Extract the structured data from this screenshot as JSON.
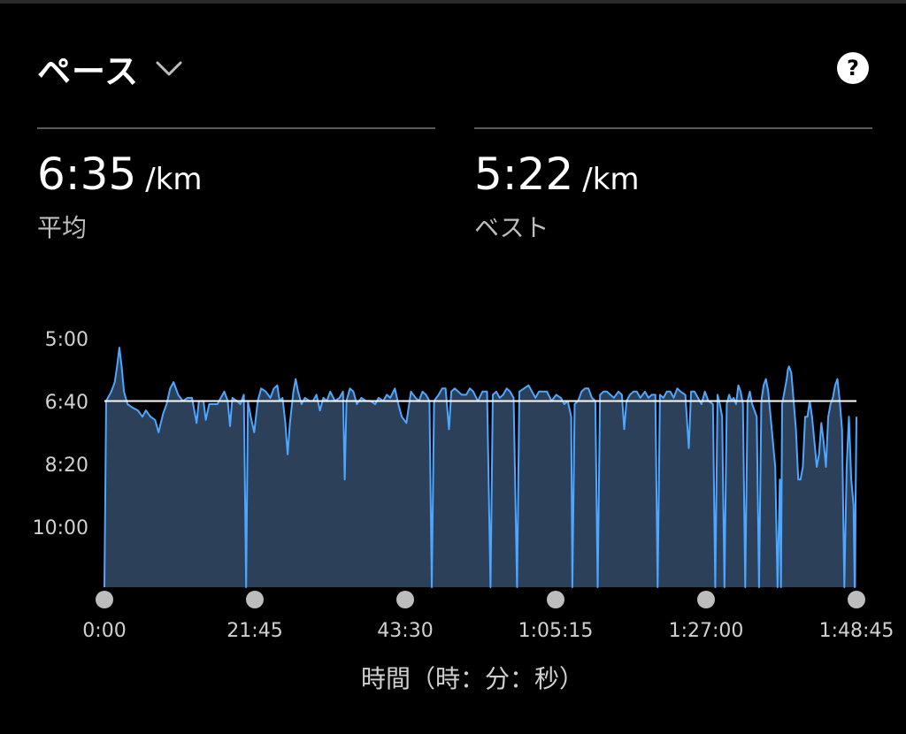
{
  "header": {
    "title": "ペース",
    "dropdown_icon": "chevron-down-icon",
    "help_icon": "help-icon",
    "help_glyph": "?"
  },
  "stats": {
    "average": {
      "value": "6:35",
      "unit": "/km",
      "label": "平均"
    },
    "best": {
      "value": "5:22",
      "unit": "/km",
      "label": "ベスト"
    }
  },
  "colors": {
    "background": "#000000",
    "line": "#4da6ff",
    "fill": "#2c4159",
    "avg_line": "#ffffff",
    "scrubber": "#bdbdbd"
  },
  "chart_data": {
    "type": "area",
    "title": "ペース",
    "xlabel": "時間（時：分：秒）",
    "ylabel": "",
    "y_inverted": true,
    "x_unit": "seconds",
    "y_unit": "seconds per km",
    "xlim": [
      0,
      6525
    ],
    "ylim": [
      300,
      780
    ],
    "y_ticks": [
      "5:00",
      "6:40",
      "8:20",
      "10:00"
    ],
    "x_ticks": [
      "0:00",
      "21:45",
      "43:30",
      "1:05:15",
      "1:27:00",
      "1:48:45"
    ],
    "average_pace": 395,
    "series": [
      {
        "points": [
          [
            0,
            780
          ],
          [
            15,
            395
          ],
          [
            60,
            380
          ],
          [
            90,
            365
          ],
          [
            110,
            340
          ],
          [
            130,
            310
          ],
          [
            150,
            340
          ],
          [
            170,
            380
          ],
          [
            200,
            400
          ],
          [
            240,
            405
          ],
          [
            290,
            410
          ],
          [
            330,
            420
          ],
          [
            360,
            410
          ],
          [
            400,
            420
          ],
          [
            440,
            425
          ],
          [
            470,
            445
          ],
          [
            510,
            415
          ],
          [
            540,
            400
          ],
          [
            570,
            375
          ],
          [
            600,
            365
          ],
          [
            640,
            385
          ],
          [
            680,
            395
          ],
          [
            720,
            390
          ],
          [
            760,
            390
          ],
          [
            780,
            410
          ],
          [
            800,
            430
          ],
          [
            820,
            395
          ],
          [
            860,
            395
          ],
          [
            880,
            425
          ],
          [
            910,
            400
          ],
          [
            950,
            400
          ],
          [
            980,
            400
          ],
          [
            1010,
            390
          ],
          [
            1040,
            380
          ],
          [
            1070,
            395
          ],
          [
            1090,
            435
          ],
          [
            1110,
            390
          ],
          [
            1150,
            395
          ],
          [
            1180,
            400
          ],
          [
            1210,
            385
          ],
          [
            1230,
            790
          ],
          [
            1245,
            395
          ],
          [
            1270,
            420
          ],
          [
            1300,
            445
          ],
          [
            1330,
            395
          ],
          [
            1360,
            375
          ],
          [
            1400,
            380
          ],
          [
            1440,
            390
          ],
          [
            1470,
            375
          ],
          [
            1500,
            370
          ],
          [
            1520,
            395
          ],
          [
            1545,
            390
          ],
          [
            1570,
            430
          ],
          [
            1590,
            480
          ],
          [
            1610,
            430
          ],
          [
            1640,
            380
          ],
          [
            1660,
            360
          ],
          [
            1680,
            380
          ],
          [
            1710,
            400
          ],
          [
            1740,
            390
          ],
          [
            1780,
            395
          ],
          [
            1810,
            395
          ],
          [
            1840,
            385
          ],
          [
            1870,
            410
          ],
          [
            1900,
            390
          ],
          [
            1930,
            395
          ],
          [
            1960,
            380
          ],
          [
            2000,
            395
          ],
          [
            2040,
            390
          ],
          [
            2070,
            380
          ],
          [
            2085,
            520
          ],
          [
            2100,
            395
          ],
          [
            2130,
            375
          ],
          [
            2160,
            380
          ],
          [
            2190,
            400
          ],
          [
            2230,
            390
          ],
          [
            2270,
            395
          ],
          [
            2310,
            395
          ],
          [
            2350,
            400
          ],
          [
            2380,
            390
          ],
          [
            2420,
            395
          ],
          [
            2450,
            385
          ],
          [
            2480,
            390
          ],
          [
            2520,
            375
          ],
          [
            2550,
            400
          ],
          [
            2580,
            420
          ],
          [
            2620,
            430
          ],
          [
            2660,
            380
          ],
          [
            2700,
            390
          ],
          [
            2730,
            395
          ],
          [
            2760,
            380
          ],
          [
            2790,
            385
          ],
          [
            2820,
            395
          ],
          [
            2840,
            780
          ],
          [
            2860,
            395
          ],
          [
            2900,
            385
          ],
          [
            2930,
            375
          ],
          [
            2960,
            375
          ],
          [
            2990,
            440
          ],
          [
            3010,
            380
          ],
          [
            3040,
            375
          ],
          [
            3070,
            380
          ],
          [
            3100,
            385
          ],
          [
            3140,
            385
          ],
          [
            3170,
            375
          ],
          [
            3200,
            380
          ],
          [
            3240,
            395
          ],
          [
            3280,
            380
          ],
          [
            3320,
            380
          ],
          [
            3350,
            790
          ],
          [
            3370,
            385
          ],
          [
            3400,
            380
          ],
          [
            3430,
            390
          ],
          [
            3460,
            385
          ],
          [
            3490,
            375
          ],
          [
            3520,
            380
          ],
          [
            3550,
            390
          ],
          [
            3580,
            790
          ],
          [
            3600,
            380
          ],
          [
            3640,
            375
          ],
          [
            3680,
            370
          ],
          [
            3710,
            380
          ],
          [
            3740,
            390
          ],
          [
            3770,
            380
          ],
          [
            3800,
            380
          ],
          [
            3840,
            380
          ],
          [
            3880,
            395
          ],
          [
            3920,
            385
          ],
          [
            3960,
            390
          ],
          [
            3990,
            400
          ],
          [
            4020,
            395
          ],
          [
            4050,
            420
          ],
          [
            4060,
            780
          ],
          [
            4080,
            400
          ],
          [
            4110,
            395
          ],
          [
            4140,
            380
          ],
          [
            4170,
            375
          ],
          [
            4200,
            375
          ],
          [
            4230,
            390
          ],
          [
            4260,
            395
          ],
          [
            4280,
            790
          ],
          [
            4300,
            385
          ],
          [
            4330,
            380
          ],
          [
            4360,
            380
          ],
          [
            4390,
            385
          ],
          [
            4420,
            390
          ],
          [
            4460,
            380
          ],
          [
            4490,
            385
          ],
          [
            4510,
            440
          ],
          [
            4530,
            395
          ],
          [
            4560,
            385
          ],
          [
            4590,
            380
          ],
          [
            4620,
            380
          ],
          [
            4650,
            390
          ],
          [
            4690,
            380
          ],
          [
            4720,
            390
          ],
          [
            4750,
            385
          ],
          [
            4780,
            385
          ],
          [
            4800,
            780
          ],
          [
            4820,
            385
          ],
          [
            4850,
            390
          ],
          [
            4880,
            380
          ],
          [
            4910,
            380
          ],
          [
            4940,
            390
          ],
          [
            4970,
            375
          ],
          [
            5000,
            380
          ],
          [
            5040,
            385
          ],
          [
            5070,
            470
          ],
          [
            5090,
            380
          ],
          [
            5120,
            380
          ],
          [
            5150,
            390
          ],
          [
            5180,
            400
          ],
          [
            5210,
            380
          ],
          [
            5240,
            395
          ],
          [
            5280,
            400
          ],
          [
            5300,
            780
          ],
          [
            5320,
            385
          ],
          [
            5340,
            400
          ],
          [
            5360,
            420
          ],
          [
            5380,
            790
          ],
          [
            5400,
            400
          ],
          [
            5420,
            385
          ],
          [
            5440,
            395
          ],
          [
            5460,
            390
          ],
          [
            5480,
            400
          ],
          [
            5500,
            370
          ],
          [
            5520,
            380
          ],
          [
            5540,
            400
          ],
          [
            5560,
            790
          ],
          [
            5580,
            395
          ],
          [
            5600,
            380
          ],
          [
            5620,
            400
          ],
          [
            5640,
            410
          ],
          [
            5660,
            420
          ],
          [
            5680,
            790
          ],
          [
            5700,
            395
          ],
          [
            5720,
            370
          ],
          [
            5740,
            360
          ],
          [
            5760,
            380
          ],
          [
            5780,
            420
          ],
          [
            5800,
            460
          ],
          [
            5820,
            500
          ],
          [
            5840,
            790
          ],
          [
            5860,
            520
          ],
          [
            5870,
            790
          ],
          [
            5880,
            400
          ],
          [
            5900,
            380
          ],
          [
            5920,
            360
          ],
          [
            5930,
            345
          ],
          [
            5940,
            340
          ],
          [
            5960,
            350
          ],
          [
            5980,
            395
          ],
          [
            6000,
            440
          ],
          [
            6020,
            520
          ],
          [
            6040,
            520
          ],
          [
            6060,
            500
          ],
          [
            6080,
            420
          ],
          [
            6100,
            420
          ],
          [
            6120,
            395
          ],
          [
            6140,
            420
          ],
          [
            6160,
            460
          ],
          [
            6180,
            500
          ],
          [
            6200,
            480
          ],
          [
            6220,
            430
          ],
          [
            6240,
            460
          ],
          [
            6260,
            500
          ],
          [
            6280,
            420
          ],
          [
            6300,
            400
          ],
          [
            6320,
            390
          ],
          [
            6340,
            370
          ],
          [
            6360,
            360
          ],
          [
            6380,
            395
          ],
          [
            6400,
            440
          ],
          [
            6420,
            780
          ],
          [
            6440,
            500
          ],
          [
            6460,
            420
          ],
          [
            6480,
            520
          ],
          [
            6500,
            560
          ],
          [
            6510,
            780
          ],
          [
            6525,
            420
          ]
        ]
      }
    ]
  }
}
